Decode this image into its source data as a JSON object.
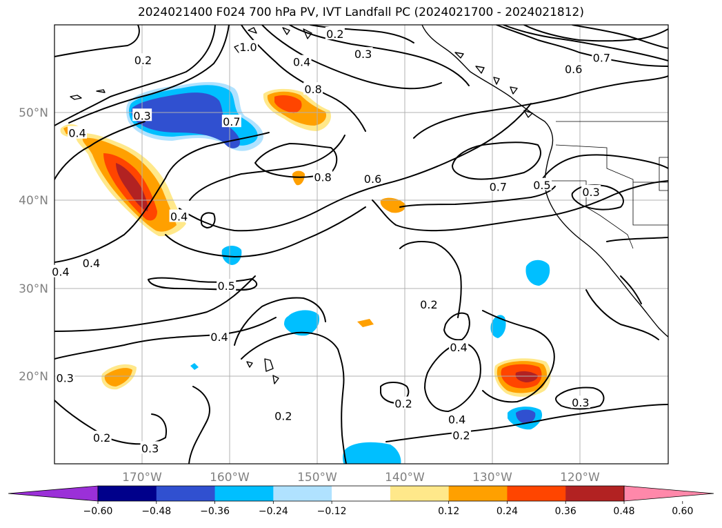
{
  "title": "2024021400 F024 700 hPa PV, IVT Landfall PC (2024021700 - 2024021812)",
  "axes": {
    "lon_ticks": [
      "170°W",
      "160°W",
      "150°W",
      "140°W",
      "130°W",
      "120°W"
    ],
    "lat_ticks": [
      "50°N",
      "40°N",
      "30°N",
      "20°N"
    ]
  },
  "colorbar": {
    "ticks": [
      "−0.60",
      "−0.48",
      "−0.36",
      "−0.24",
      "−0.12",
      "0.12",
      "0.24",
      "0.36",
      "0.48",
      "0.60"
    ],
    "colors": [
      "#9b30d8",
      "#00008b",
      "#3050d0",
      "#00bfff",
      "#b0e2ff",
      "#ffffff",
      "#ffe88a",
      "#ffa000",
      "#ff4500",
      "#b22222",
      "#ff88aa"
    ]
  },
  "contour_labels": [
    {
      "text": "0.2",
      "lon": -169.9,
      "lat": 55.9
    },
    {
      "text": "0.2",
      "lon": -148.0,
      "lat": 58.9
    },
    {
      "text": "0.3",
      "lon": -144.8,
      "lat": 56.6
    },
    {
      "text": "0.4",
      "lon": -151.8,
      "lat": 55.7
    },
    {
      "text": "1.0",
      "lon": -157.9,
      "lat": 57.4
    },
    {
      "text": "0.8",
      "lon": -150.5,
      "lat": 52.6
    },
    {
      "text": "0.7",
      "lon": -159.8,
      "lat": 48.9
    },
    {
      "text": "0.3",
      "lon": -170.0,
      "lat": 49.6
    },
    {
      "text": "0.4",
      "lon": -177.4,
      "lat": 47.6
    },
    {
      "text": "0.8",
      "lon": -149.4,
      "lat": 42.6
    },
    {
      "text": "0.6",
      "lon": -143.7,
      "lat": 42.4
    },
    {
      "text": "0.7",
      "lon": -129.4,
      "lat": 41.5
    },
    {
      "text": "0.6",
      "lon": -120.8,
      "lat": 54.9
    },
    {
      "text": "0.7",
      "lon": -117.6,
      "lat": 56.2
    },
    {
      "text": "0.5",
      "lon": -124.4,
      "lat": 41.7
    },
    {
      "text": "0.3",
      "lon": -118.8,
      "lat": 40.9
    },
    {
      "text": "0.4",
      "lon": -165.8,
      "lat": 38.1
    },
    {
      "text": "0.4",
      "lon": -179.3,
      "lat": 31.8
    },
    {
      "text": "0.4",
      "lon": -175.8,
      "lat": 32.8
    },
    {
      "text": "0.5",
      "lon": -160.4,
      "lat": 30.2
    },
    {
      "text": "0.2",
      "lon": -137.3,
      "lat": 28.1
    },
    {
      "text": "0.4",
      "lon": -161.2,
      "lat": 24.4
    },
    {
      "text": "0.4",
      "lon": -133.9,
      "lat": 23.2
    },
    {
      "text": "0.3",
      "lon": -178.8,
      "lat": 19.7
    },
    {
      "text": "0.2",
      "lon": -140.2,
      "lat": 16.8
    },
    {
      "text": "0.2",
      "lon": -153.9,
      "lat": 15.4
    },
    {
      "text": "0.4",
      "lon": -134.1,
      "lat": 15.0
    },
    {
      "text": "0.3",
      "lon": -120.0,
      "lat": 16.9
    },
    {
      "text": "0.2",
      "lon": -133.6,
      "lat": 13.2
    },
    {
      "text": "0.2",
      "lon": -174.6,
      "lat": 12.9
    },
    {
      "text": "0.3",
      "lon": -169.1,
      "lat": 11.7
    }
  ]
}
